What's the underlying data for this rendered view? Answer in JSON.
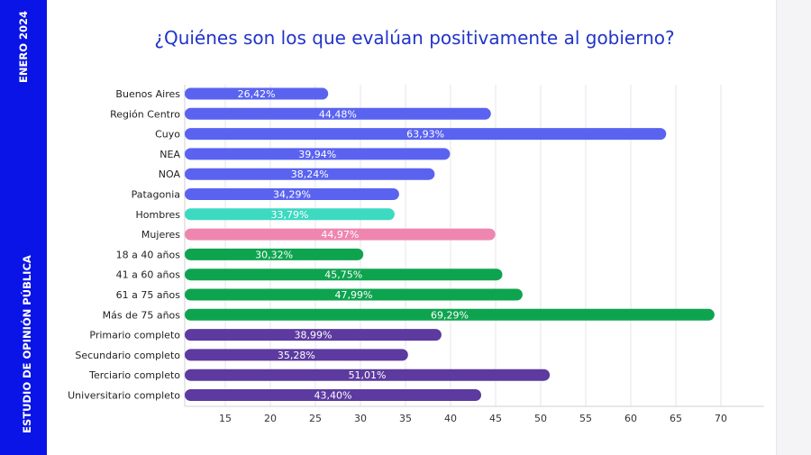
{
  "sidebar": {
    "date": "ENERO 2024",
    "study": "ESTUDIO DE OPINIÓN PÚBLICA"
  },
  "colors": {
    "sidebar": "#0a14e6",
    "title": "#2234c9",
    "region": "#5a63f0",
    "hombres": "#3dd9c1",
    "mujeres": "#ef86b0",
    "edad": "#0ea44f",
    "educacion": "#5c3aa0"
  },
  "chart_data": {
    "type": "bar",
    "orientation": "horizontal",
    "title": "¿Quiénes son los que evalúan positivamente al gobierno?",
    "categories": [
      "Buenos Aires",
      "Región Centro",
      "Cuyo",
      "NEA",
      "NOA",
      "Patagonia",
      "Hombres",
      "Mujeres",
      "18 a 40 años",
      "41 a 60 años",
      "61 a 75 años",
      "Más de 75 años",
      "Primario completo",
      "Secundario completo",
      "Terciario completo",
      "Universitario completo"
    ],
    "values": [
      26.42,
      44.48,
      63.93,
      39.94,
      38.24,
      34.29,
      33.79,
      44.97,
      30.32,
      45.75,
      47.99,
      69.29,
      38.99,
      35.28,
      51.01,
      43.4
    ],
    "value_labels": [
      "26,42%",
      "44,48%",
      "63,93%",
      "39,94%",
      "38,24%",
      "34,29%",
      "33,79%",
      "44,97%",
      "30,32%",
      "45,75%",
      "47,99%",
      "69,29%",
      "38,99%",
      "35,28%",
      "51,01%",
      "43,40%"
    ],
    "groups": [
      "region",
      "region",
      "region",
      "region",
      "region",
      "region",
      "hombres",
      "mujeres",
      "edad",
      "edad",
      "edad",
      "edad",
      "educacion",
      "educacion",
      "educacion",
      "educacion"
    ],
    "x_ticks": [
      15,
      20,
      25,
      30,
      35,
      40,
      45,
      50,
      55,
      60,
      65,
      70
    ],
    "xlim": [
      10.5,
      75
    ],
    "grid": true,
    "xlabel": "",
    "ylabel": ""
  }
}
